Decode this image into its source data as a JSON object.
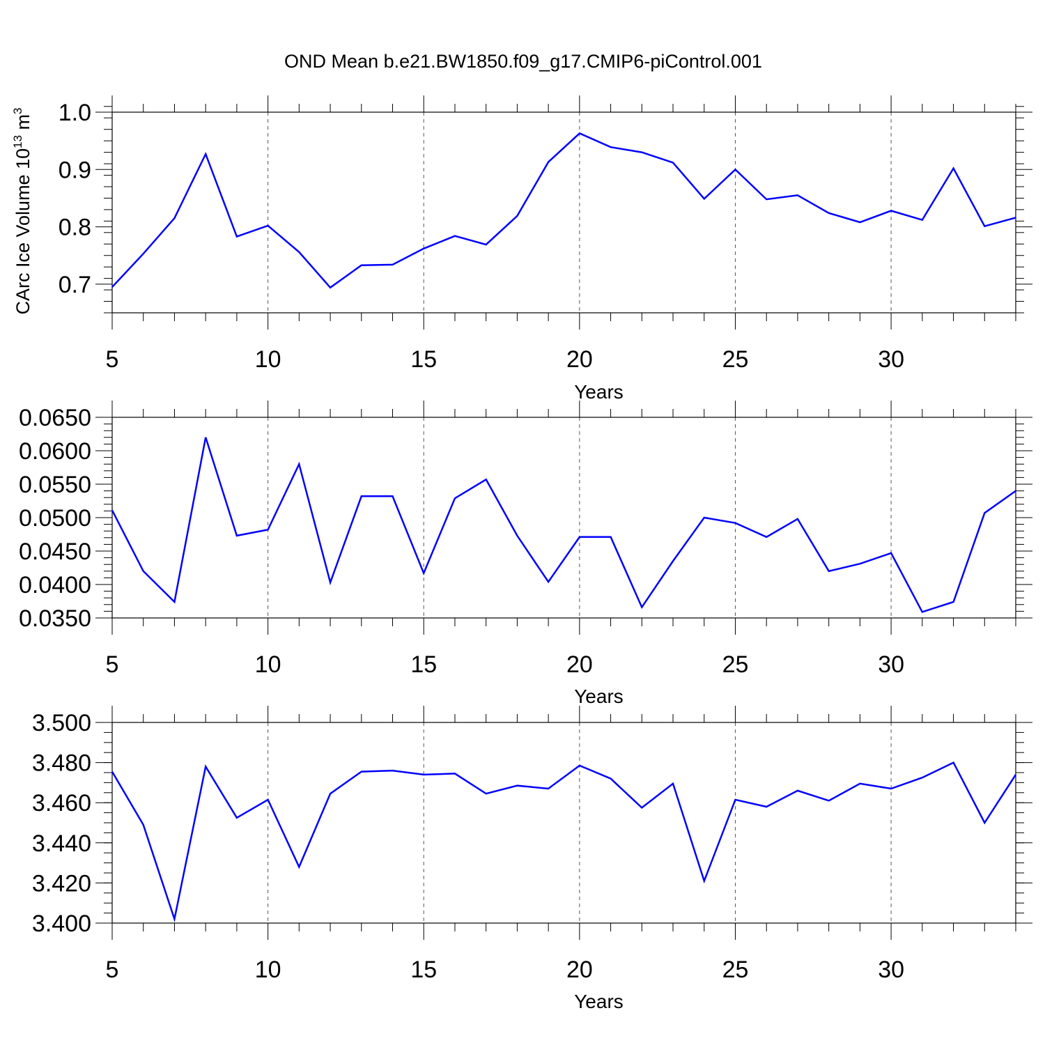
{
  "title": "OND Mean b.e21.BW1850.f09_g17.CMIP6-piControl.001",
  "line_color": "#0000ff",
  "chart_data": [
    {
      "type": "line",
      "xlabel": "Years",
      "ylabel_main": "CArc Ice Volume 10",
      "ylabel_exp": "13",
      "ylabel_unit_pre": " m",
      "ylabel_unit_exp": "3",
      "xlim": [
        5,
        34
      ],
      "ylim": [
        0.65,
        1.0
      ],
      "x_ticks": [
        5,
        10,
        15,
        20,
        25,
        30
      ],
      "x_tick_labels": [
        "5",
        "10",
        "15",
        "20",
        "25",
        "30"
      ],
      "y_ticks": [
        0.7,
        0.8,
        0.9,
        1.0
      ],
      "y_tick_labels": [
        "0.7",
        "0.8",
        "0.9",
        "1.0"
      ],
      "y_minor_step": 0.02,
      "grid_x": [
        10,
        15,
        20,
        25,
        30
      ],
      "x": [
        5,
        6,
        7,
        8,
        9,
        10,
        11,
        12,
        13,
        14,
        15,
        16,
        17,
        18,
        19,
        20,
        21,
        22,
        23,
        24,
        25,
        26,
        27,
        28,
        29,
        30,
        31,
        32,
        33,
        34
      ],
      "values": [
        0.695,
        0.753,
        0.815,
        0.927,
        0.783,
        0.802,
        0.756,
        0.694,
        0.733,
        0.734,
        0.762,
        0.784,
        0.769,
        0.819,
        0.913,
        0.963,
        0.939,
        0.93,
        0.912,
        0.849,
        0.9,
        0.848,
        0.855,
        0.824,
        0.808,
        0.828,
        0.812,
        0.902,
        0.801,
        0.816
      ]
    },
    {
      "type": "line",
      "xlabel": "Years",
      "ylabel_main": "",
      "xlim": [
        5,
        34
      ],
      "ylim": [
        0.035,
        0.065
      ],
      "x_ticks": [
        5,
        10,
        15,
        20,
        25,
        30
      ],
      "x_tick_labels": [
        "5",
        "10",
        "15",
        "20",
        "25",
        "30"
      ],
      "y_ticks": [
        0.035,
        0.04,
        0.045,
        0.05,
        0.055,
        0.06,
        0.065
      ],
      "y_tick_labels": [
        "0.0350",
        "0.0400",
        "0.0450",
        "0.0500",
        "0.0550",
        "0.0600",
        "0.0650"
      ],
      "y_minor_step": 0.001,
      "grid_x": [
        10,
        15,
        20,
        25,
        30
      ],
      "x": [
        5,
        6,
        7,
        8,
        9,
        10,
        11,
        12,
        13,
        14,
        15,
        16,
        17,
        18,
        19,
        20,
        21,
        22,
        23,
        24,
        25,
        26,
        27,
        28,
        29,
        30,
        31,
        32,
        33,
        34
      ],
      "values": [
        0.0511,
        0.042,
        0.0374,
        0.062,
        0.0473,
        0.0482,
        0.058,
        0.0403,
        0.0532,
        0.0532,
        0.0417,
        0.0529,
        0.0557,
        0.0473,
        0.0404,
        0.0471,
        0.0471,
        0.0366,
        0.0435,
        0.05,
        0.0492,
        0.0471,
        0.0498,
        0.042,
        0.0431,
        0.0447,
        0.0359,
        0.0374,
        0.0507,
        0.054
      ]
    },
    {
      "type": "line",
      "xlabel": "Years",
      "ylabel_main": "",
      "xlim": [
        5,
        34
      ],
      "ylim": [
        3.4,
        3.5
      ],
      "x_ticks": [
        5,
        10,
        15,
        20,
        25,
        30
      ],
      "x_tick_labels": [
        "5",
        "10",
        "15",
        "20",
        "25",
        "30"
      ],
      "y_ticks": [
        3.4,
        3.42,
        3.44,
        3.46,
        3.48,
        3.5
      ],
      "y_tick_labels": [
        "3.400",
        "3.420",
        "3.440",
        "3.460",
        "3.480",
        "3.500"
      ],
      "y_minor_step": 0.005,
      "grid_x": [
        10,
        15,
        20,
        25,
        30
      ],
      "x": [
        5,
        6,
        7,
        8,
        9,
        10,
        11,
        12,
        13,
        14,
        15,
        16,
        17,
        18,
        19,
        20,
        21,
        22,
        23,
        24,
        25,
        26,
        27,
        28,
        29,
        30,
        31,
        32,
        33,
        34
      ],
      "values": [
        3.4755,
        3.449,
        3.402,
        3.478,
        3.4525,
        3.4615,
        3.428,
        3.4645,
        3.4755,
        3.476,
        3.474,
        3.4745,
        3.4645,
        3.4685,
        3.467,
        3.4785,
        3.472,
        3.4575,
        3.4695,
        3.421,
        3.4615,
        3.458,
        3.466,
        3.461,
        3.4695,
        3.467,
        3.4725,
        3.48,
        3.45,
        3.474
      ]
    }
  ]
}
